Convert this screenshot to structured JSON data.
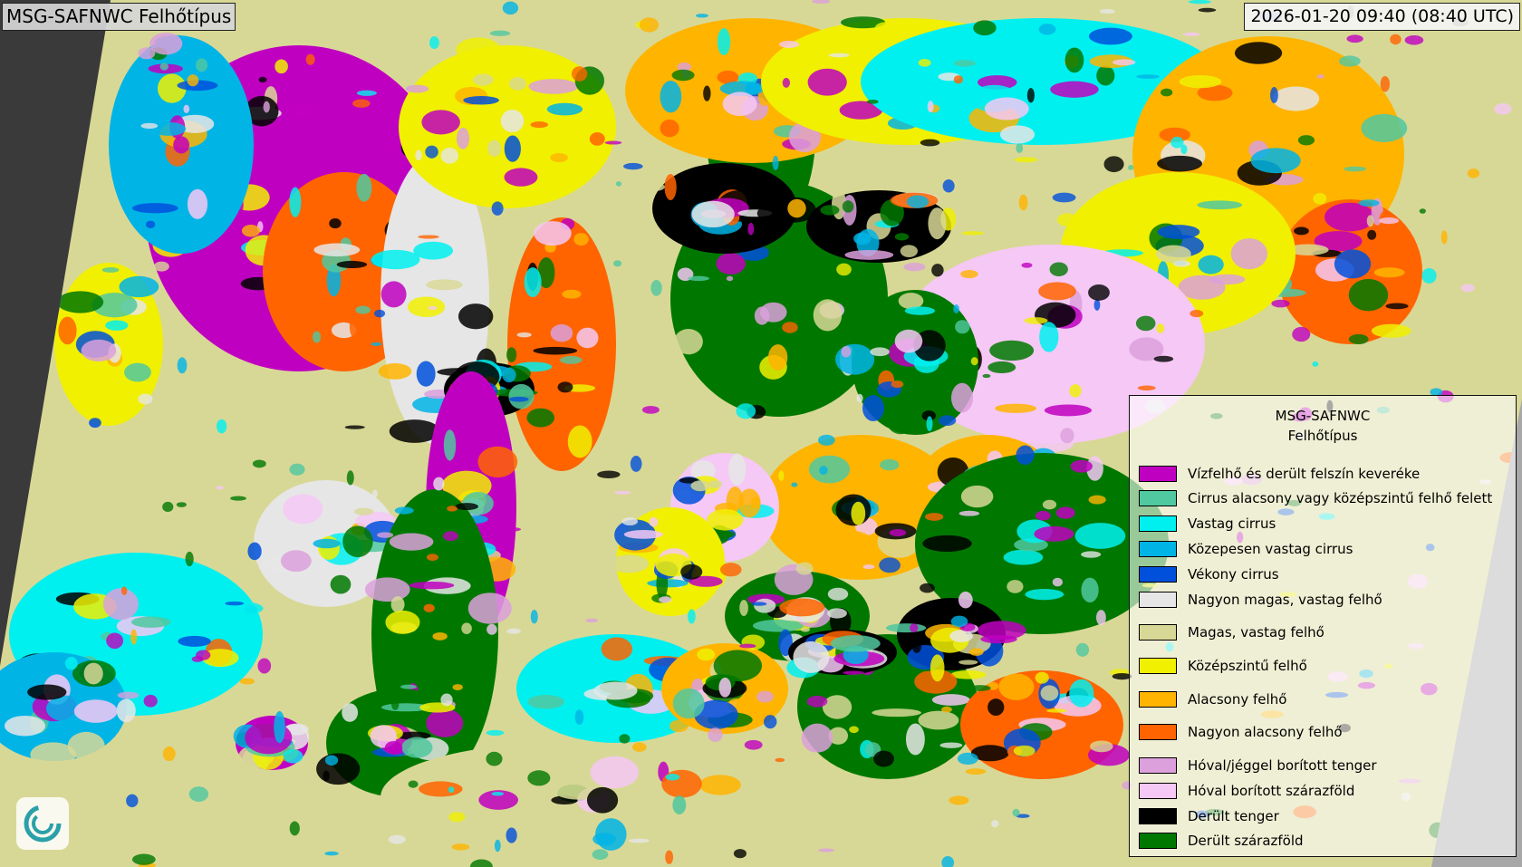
{
  "header": {
    "title": "MSG-SAFNWC Felhőtípus",
    "timestamp": "2026-01-20 09:40 (08:40 UTC)"
  },
  "legend": {
    "title_line1": "MSG-SAFNWC",
    "title_line2": "Felhőtípus",
    "items": [
      {
        "label": "Vízfelhő és derült felszín keveréke",
        "color": "#c000c0"
      },
      {
        "label": "Cirrus alacsony vagy középszintű felhő felett",
        "color": "#50c8a0"
      },
      {
        "label": "Vastag cirrus",
        "color": "#00f0f0"
      },
      {
        "label": "Közepesen vastag cirrus",
        "color": "#00b4e6"
      },
      {
        "label": "Vékony cirrus",
        "color": "#0050dc"
      },
      {
        "label": "Nagyon magas, vastag felhő",
        "color": "#e6e6e6"
      },
      {
        "label": "Magas, vastag felhő",
        "color": "#d8d896"
      },
      {
        "label": "Középszintű felhő",
        "color": "#f0f000"
      },
      {
        "label": "Alacsony felhő",
        "color": "#ffb400"
      },
      {
        "label": "Nagyon alacsony felhő",
        "color": "#ff6400"
      },
      {
        "label": "Hóval/jéggel borított tenger",
        "color": "#dca0dc"
      },
      {
        "label": "Hóval borított szárazföld",
        "color": "#f5c8f5"
      },
      {
        "label": "Derült tenger",
        "color": "#000000"
      },
      {
        "label": "Derült szárazföld",
        "color": "#007800"
      }
    ]
  },
  "colors": {
    "outside_left": "#3a3a3a",
    "outside_right": "#a8a8a8"
  }
}
